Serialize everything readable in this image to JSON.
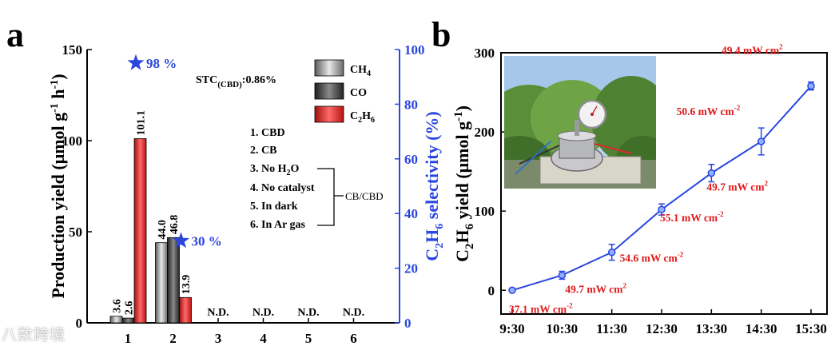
{
  "panel_labels": [
    "a",
    "b"
  ],
  "colors": {
    "ch4": "#8c8c8c",
    "co": "#3a3a3a",
    "c2h6": "#e02a2a",
    "selectivity": "#2a46e0",
    "line_b": "#2a46e0",
    "annotation_b": "#e0191b"
  },
  "panel_a": {
    "stc_label": "STC",
    "stc_sub": "(CBD)",
    "stc_value": ":0.86%",
    "legend": {
      "ch4": {
        "base": "CH",
        "sub": "4"
      },
      "co": {
        "base": "CO",
        "sub": ""
      },
      "c2h6": {
        "p1": "C",
        "s1": "2",
        "p2": "H",
        "s2": "6"
      }
    },
    "conditions": [
      "1. CBD",
      "2. CB",
      "3. No H",
      "4. No catalyst",
      "5. In dark",
      "6. In Ar gas"
    ],
    "conditions_h2o_sub": "2",
    "conditions_h2o_tail": "O",
    "bracket_label": "CB/CBD",
    "selectivity_labels": [
      "98 %",
      "30 %"
    ],
    "nd_label": "N.D."
  },
  "chart_data": [
    {
      "type": "bar",
      "categories": [
        "1",
        "2",
        "3",
        "4",
        "5",
        "6"
      ],
      "series": [
        {
          "name": "CH4",
          "values": [
            3.6,
            44.0,
            0,
            0,
            0,
            0
          ]
        },
        {
          "name": "CO",
          "values": [
            2.6,
            46.8,
            0,
            0,
            0,
            0
          ]
        },
        {
          "name": "C2H6",
          "values": [
            101.1,
            13.9,
            0,
            0,
            0,
            0
          ]
        }
      ],
      "bar_labels": [
        [
          "3.6",
          "2.6",
          "101.1"
        ],
        [
          "44.0",
          "46.8",
          "13.9"
        ]
      ],
      "not_detected": [
        "3",
        "4",
        "5",
        "6"
      ],
      "selectivity": [
        {
          "category": "1",
          "value": 98
        },
        {
          "category": "2",
          "value": 30
        }
      ],
      "ylabel": "Production yield (μmol g⁻¹ h⁻¹)",
      "ylabel_right": "C₂H₆ selectivity (%)",
      "ylim": [
        0,
        150
      ],
      "yticks": [
        "0",
        "50",
        "100",
        "150"
      ],
      "ylim_right": [
        0,
        100
      ],
      "yticks_right": [
        "0",
        "20",
        "40",
        "60",
        "80",
        "100"
      ]
    },
    {
      "type": "line",
      "x": [
        "9:30",
        "10:30",
        "11:30",
        "12:30",
        "13:30",
        "14:30",
        "15:30"
      ],
      "values": [
        0,
        19,
        48,
        102,
        148,
        188,
        258
      ],
      "errors": [
        0,
        5,
        10,
        7,
        11,
        17,
        5
      ],
      "point_labels": [
        "37.1 mW cm",
        "49.7 mW cm",
        "54.6 mW cm",
        "55.1 mW cm",
        "49.7 mW cm",
        "50.6 mW cm",
        "49.4 mW cm"
      ],
      "point_labels_sup": [
        "-2",
        "2",
        "-2",
        "-2",
        "2",
        "-2",
        "2"
      ],
      "ylabel": "C₂H₆ yield (μmol g⁻¹)",
      "ylim": [
        -30,
        300
      ],
      "yticks": [
        "0",
        "100",
        "200",
        "300"
      ]
    }
  ],
  "watermark": "八数跨境"
}
